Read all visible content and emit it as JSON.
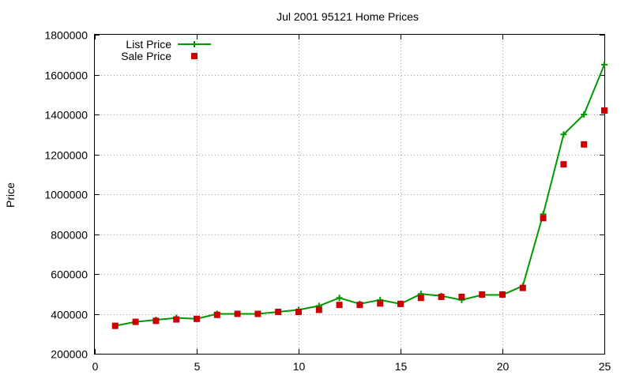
{
  "chart_data": {
    "type": "line",
    "title": "Jul 2001 95121 Home Prices",
    "xlabel": "",
    "ylabel": "Price",
    "xlim": [
      0,
      25
    ],
    "ylim": [
      200000,
      1800000
    ],
    "x_ticks": [
      0,
      5,
      10,
      15,
      20,
      25
    ],
    "y_ticks": [
      200000,
      400000,
      600000,
      800000,
      1000000,
      1200000,
      1400000,
      1600000,
      1800000
    ],
    "grid": true,
    "legend_position": "top-left",
    "x": [
      1,
      2,
      3,
      4,
      5,
      6,
      7,
      8,
      9,
      10,
      11,
      12,
      13,
      14,
      15,
      16,
      17,
      18,
      19,
      20,
      21,
      22,
      23,
      24,
      25
    ],
    "series": [
      {
        "name": "List Price",
        "style": "line+cross",
        "color": "#009900",
        "values": [
          340000,
          360000,
          370000,
          380000,
          375000,
          400000,
          400000,
          400000,
          410000,
          420000,
          440000,
          480000,
          450000,
          470000,
          450000,
          500000,
          490000,
          470000,
          495000,
          495000,
          540000,
          900000,
          1300000,
          1400000,
          1650000
        ]
      },
      {
        "name": "Sale Price",
        "style": "square-marker",
        "color": "#cc0000",
        "values": [
          340000,
          360000,
          365000,
          372000,
          375000,
          395000,
          400000,
          400000,
          410000,
          410000,
          420000,
          445000,
          445000,
          452000,
          450000,
          480000,
          485000,
          485000,
          497000,
          497000,
          530000,
          880000,
          1150000,
          1250000,
          1420000
        ]
      }
    ]
  }
}
